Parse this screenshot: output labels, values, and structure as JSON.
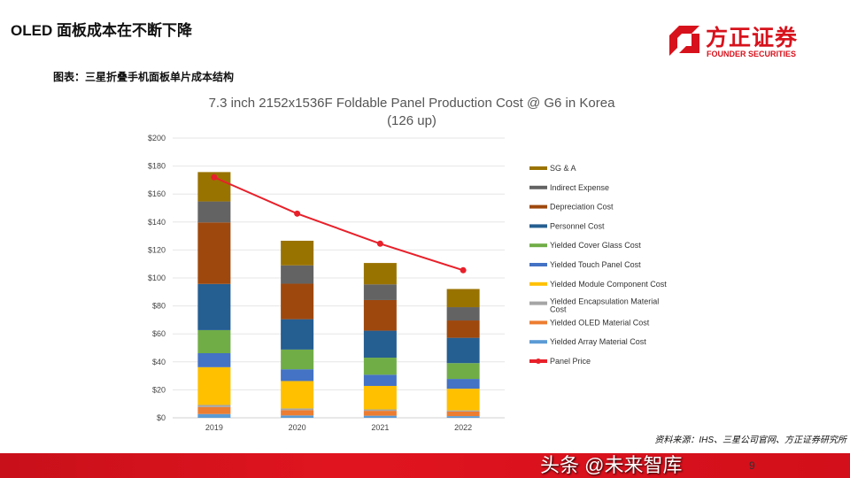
{
  "header": {
    "title": "OLED 面板成本在不断下降",
    "figure_caption": "图表：三星折叠手机面板单片成本结构"
  },
  "logo": {
    "cn": "方正证券",
    "en": "FOUNDER SECURITIES",
    "color": "#d7121c"
  },
  "footer": {
    "source": "资料来源：IHS、三星公司官网、方正证券研究所",
    "page": "9",
    "watermark": "头条 @未来智库"
  },
  "chart_data": {
    "type": "bar",
    "stacked": true,
    "title": "7.3 inch 2152x1536F  Foldable Panel Production Cost @ G6  in Korea",
    "subtitle": "(126 up)",
    "xlabel": "",
    "ylabel": "",
    "ylim": [
      0,
      200
    ],
    "yticks": [
      "$0",
      "$20",
      "$40",
      "$60",
      "$80",
      "$100",
      "$120",
      "$140",
      "$160",
      "$180",
      "$200"
    ],
    "grid": true,
    "legend_position": "right",
    "categories": [
      "2019",
      "2020",
      "2021",
      "2022"
    ],
    "series": [
      {
        "name": "Yielded Array Material Cost",
        "color": "#5b9bd5",
        "values": [
          2.7,
          1.7,
          1.5,
          1.2
        ]
      },
      {
        "name": "Yielded OLED Material Cost",
        "color": "#ed7d31",
        "values": [
          5,
          3.8,
          3.5,
          3.3
        ]
      },
      {
        "name": "Yielded Encapsulation Material Cost",
        "color": "#a5a5a5",
        "values": [
          1.5,
          1.2,
          1,
          0.8
        ]
      },
      {
        "name": "Yielded Module Component Cost",
        "color": "#ffc000",
        "values": [
          27,
          19.6,
          16.8,
          15.5
        ]
      },
      {
        "name": "Yielded Touch Panel Cost",
        "color": "#4472c4",
        "values": [
          10,
          8.4,
          8,
          7
        ]
      },
      {
        "name": "Yielded Cover Glass Cost",
        "color": "#70ad47",
        "values": [
          16.5,
          14.1,
          12.2,
          11.3
        ]
      },
      {
        "name": "Personnel Cost",
        "color": "#255e91",
        "values": [
          33,
          21.7,
          19.3,
          18.1
        ]
      },
      {
        "name": "Depreciation Cost",
        "color": "#9e480e",
        "values": [
          44,
          25.4,
          21.9,
          12.4
        ]
      },
      {
        "name": "Indirect Expense",
        "color": "#636363",
        "values": [
          15,
          13.1,
          11.2,
          9.5
        ]
      },
      {
        "name": "SG & A",
        "color": "#997300",
        "values": [
          21,
          17.6,
          15.3,
          13
        ]
      }
    ],
    "line_series": {
      "name": "Panel Price",
      "color": "#e8202a",
      "values": [
        172,
        146,
        124.5,
        105.5
      ]
    }
  }
}
